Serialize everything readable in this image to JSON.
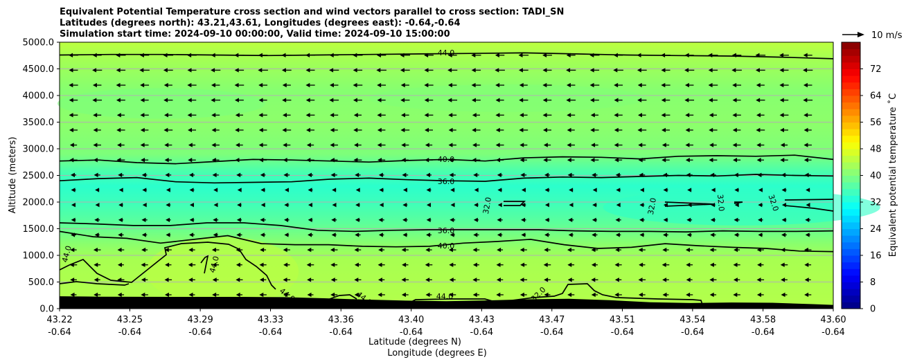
{
  "chart_data": {
    "type": "contour",
    "title_lines": [
      "Equivalent Potential Temperature cross section and wind vectors parallel to cross section: TADI_SN",
      "Latitudes (degrees north): 43.21,43.61, Longitudes (degrees east): -0.64,-0.64",
      "Simulation start time: 2024-09-10 00:00:00, Valid time: 2024-09-10 15:00:00"
    ],
    "xlabel_line1": "Latitude (degrees N)",
    "xlabel_line2": "Longitude (degrees E)",
    "ylabel": "Altitude (meters)",
    "xlim": [
      43.22,
      43.6
    ],
    "ylim": [
      0,
      5000
    ],
    "x_ticks": [
      {
        "lat": "43.22",
        "lon": "-0.64",
        "v": 43.22
      },
      {
        "lat": "43.25",
        "lon": "-0.64",
        "v": 43.2545
      },
      {
        "lat": "43.29",
        "lon": "-0.64",
        "v": 43.2891
      },
      {
        "lat": "43.33",
        "lon": "-0.64",
        "v": 43.3236
      },
      {
        "lat": "43.36",
        "lon": "-0.64",
        "v": 43.3582
      },
      {
        "lat": "43.40",
        "lon": "-0.64",
        "v": 43.3927
      },
      {
        "lat": "43.43",
        "lon": "-0.64",
        "v": 43.4273
      },
      {
        "lat": "43.47",
        "lon": "-0.64",
        "v": 43.4618
      },
      {
        "lat": "43.51",
        "lon": "-0.64",
        "v": 43.4964
      },
      {
        "lat": "43.54",
        "lon": "-0.64",
        "v": 43.5309
      },
      {
        "lat": "43.58",
        "lon": "-0.64",
        "v": 43.5655
      },
      {
        "lat": "43.60",
        "lon": "-0.64",
        "v": 43.6
      }
    ],
    "y_ticks": [
      "0.0",
      "500.0",
      "1000.0",
      "1500.0",
      "2000.0",
      "2500.0",
      "3000.0",
      "3500.0",
      "4000.0",
      "4500.0",
      "5000.0"
    ],
    "grid": "horizontal",
    "colorbar": {
      "label": "Equivalent potential temperature ˚C",
      "colormap": "jet",
      "range": [
        0,
        80
      ],
      "ticks": [
        "0",
        "8",
        "16",
        "24",
        "32",
        "40",
        "48",
        "56",
        "64",
        "72"
      ]
    },
    "quiver_key": "10 m/s",
    "contour_labels": [
      "44.0",
      "40.0",
      "36.0",
      "32.0",
      "36.0",
      "40.0",
      "44.0",
      "44.0",
      "44.0",
      "44.0",
      "44.0",
      "32.0",
      "32.0",
      "32.0",
      "32.0"
    ],
    "contours": [
      {
        "level": 44,
        "alt": [
          4760,
          4770,
          4770,
          4760,
          4750,
          4760,
          4770,
          4780,
          4790,
          4800,
          4780,
          4760,
          4750,
          4740,
          4720,
          4690
        ]
      },
      {
        "level": 40,
        "alt": [
          2770,
          2790,
          2740,
          2720,
          2760,
          2800,
          2790,
          2770,
          2750,
          2780,
          2800,
          2770,
          2830,
          2850,
          2840,
          2810,
          2860,
          2870,
          2860,
          2880,
          2800
        ]
      },
      {
        "level": 36,
        "alt": [
          2400,
          2440,
          2460,
          2380,
          2360,
          2370,
          2380,
          2430,
          2450,
          2420,
          2400,
          2390,
          2450,
          2470,
          2460,
          2480,
          2500,
          2490,
          2520,
          2500,
          2490
        ]
      },
      {
        "level": 36,
        "alt": [
          1610,
          1590,
          1560,
          1560,
          1610,
          1610,
          1560,
          1470,
          1450,
          1470,
          1480,
          1480,
          1480,
          1480,
          1460,
          1450,
          1450,
          1440,
          1460,
          1450,
          1450,
          1460
        ]
      },
      {
        "level": 40,
        "alt": [
          1450,
          1350,
          1320,
          1230,
          1300,
          1370,
          1220,
          1200,
          1200,
          1170,
          1160,
          1170,
          1230,
          1260,
          1300,
          1200,
          1130,
          1150,
          1220,
          1180,
          1150,
          1130,
          1080,
          1070
        ]
      },
      {
        "level": 32,
        "alt": [
          2000,
          1950,
          1930
        ]
      }
    ],
    "temperature_field": {
      "band_surface": 46,
      "band_lower": 42,
      "band_layer_1000_1500": 40,
      "band_core_2000": 33,
      "band_2500_3000": 40,
      "band_upper": 41,
      "band_top": 43
    },
    "wind_vectors": {
      "direction": "mostly from the north-east, pointing left",
      "rows": 17,
      "cols": 33
    }
  }
}
